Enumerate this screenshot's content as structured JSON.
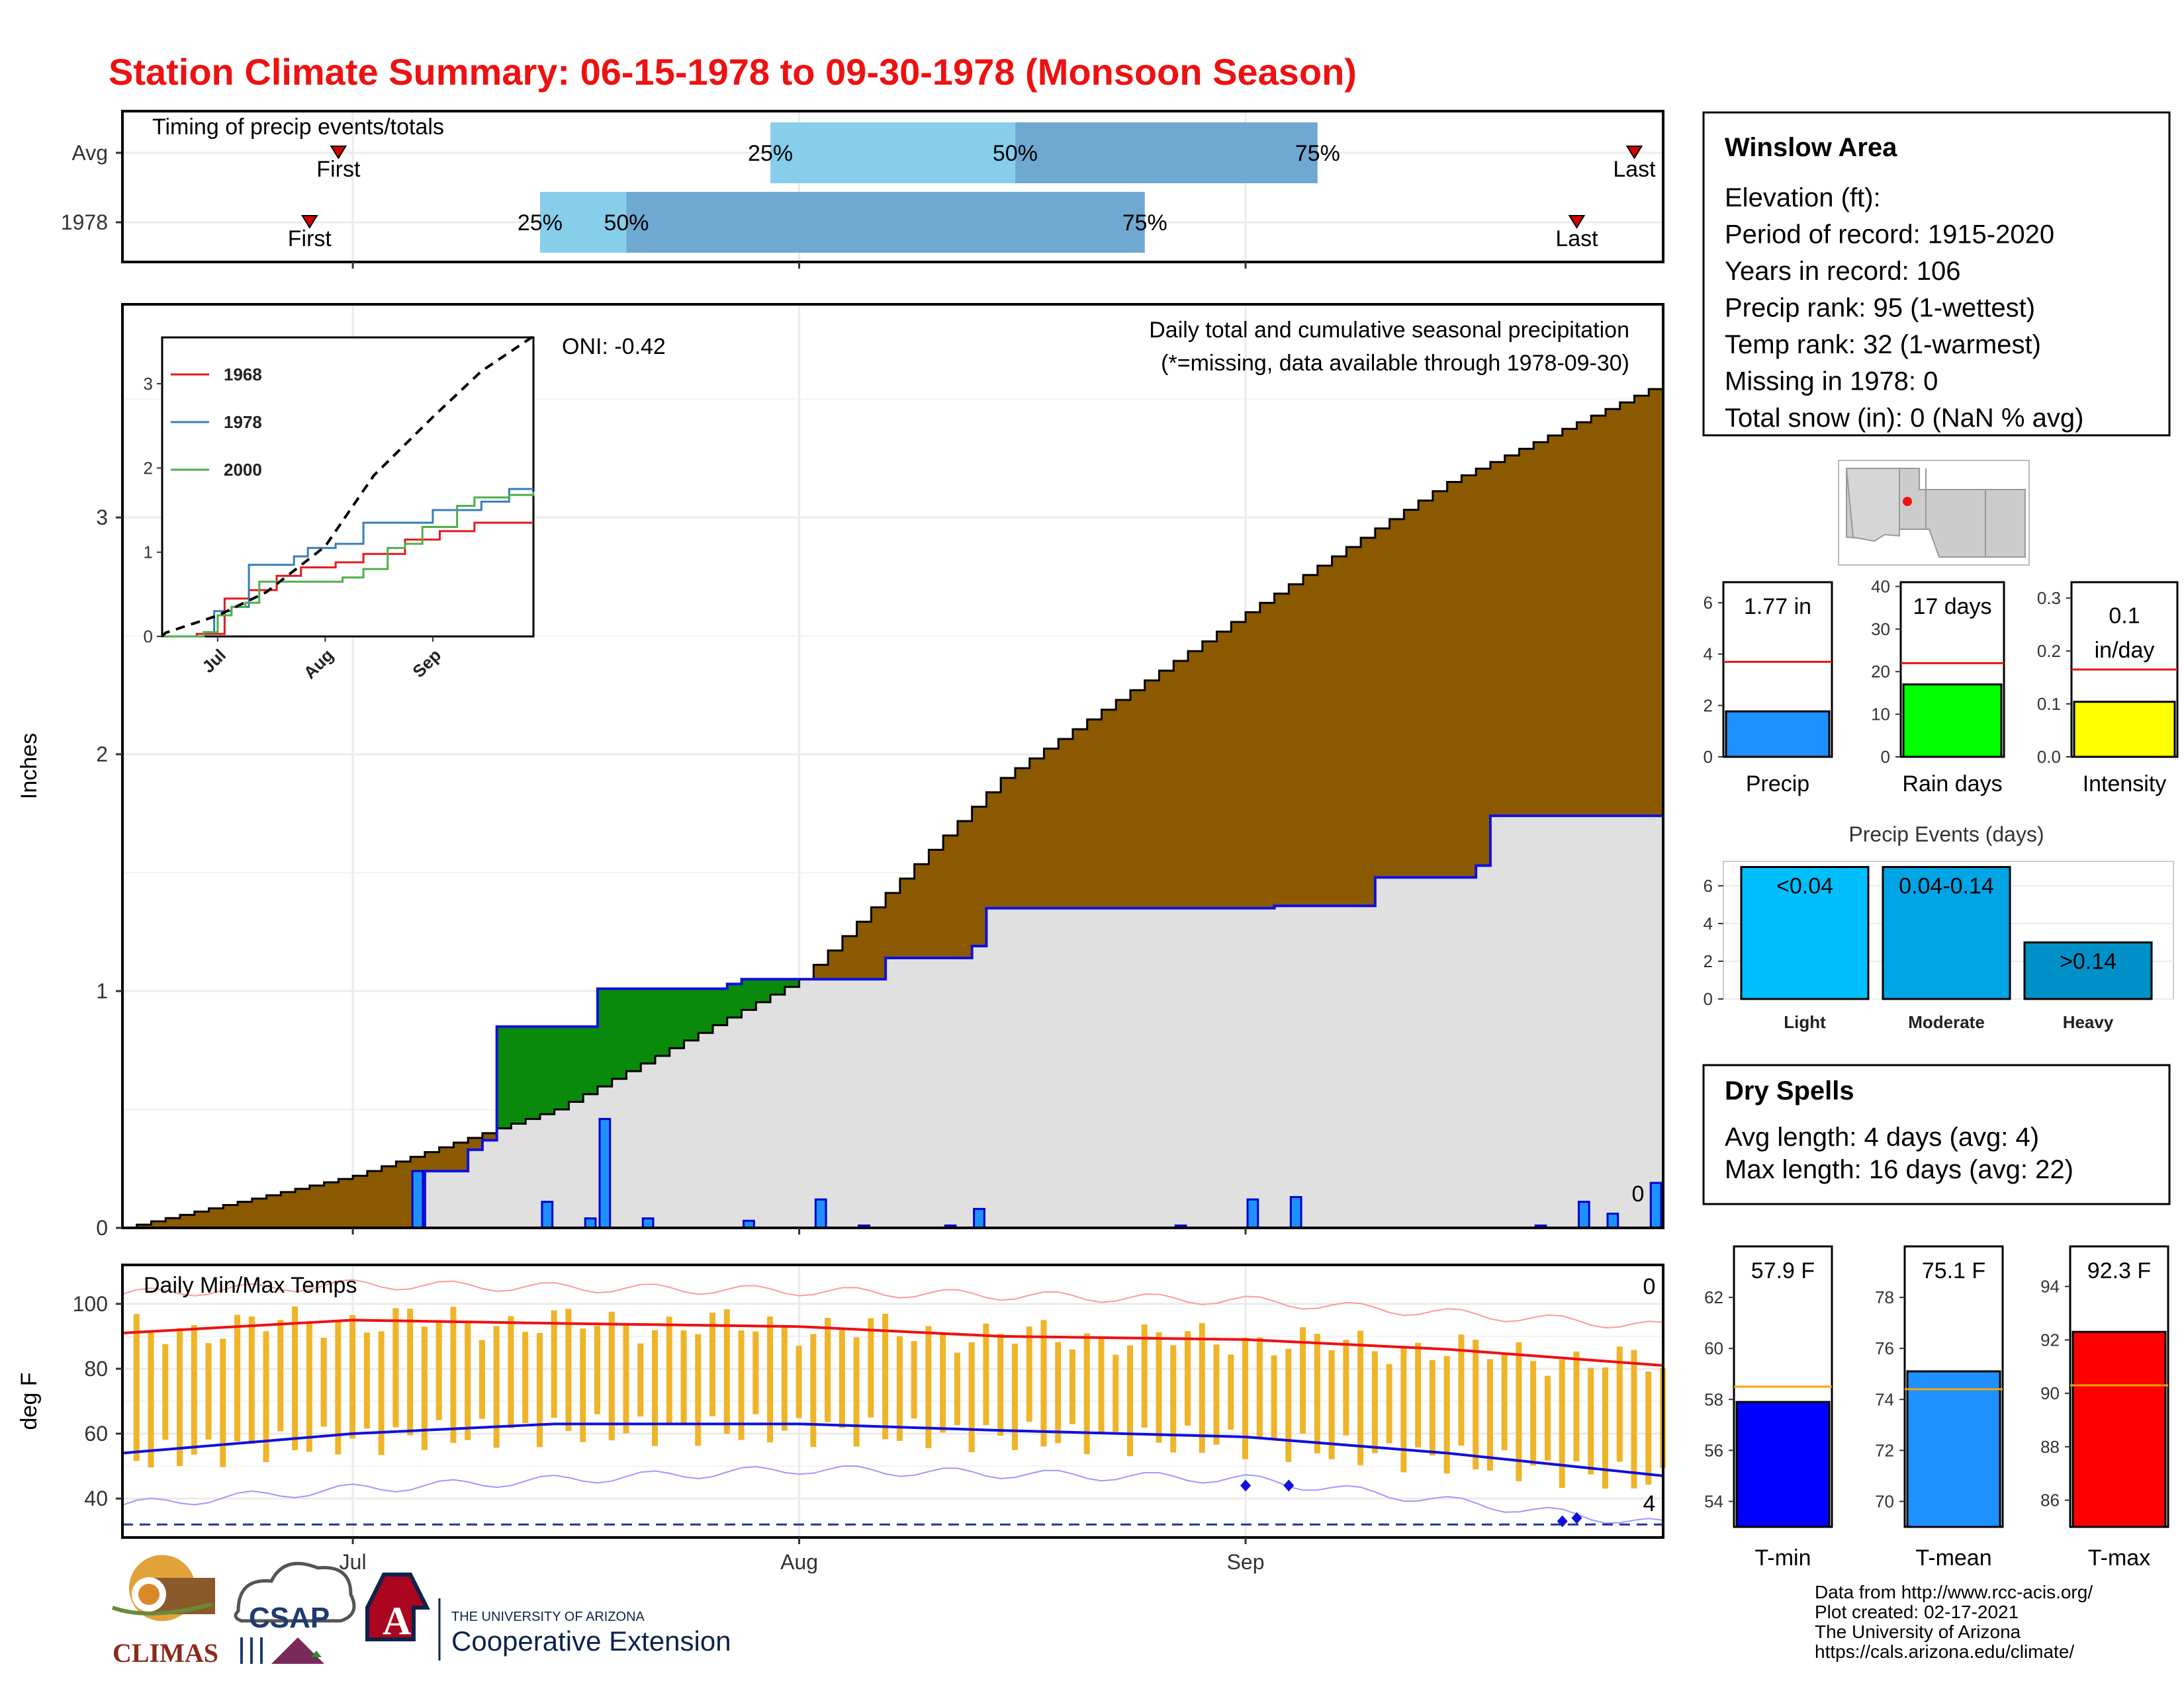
{
  "title": "Station Climate Summary: 06-15-1978 to 09-30-1978 (Monsoon Season)",
  "timing_panel": {
    "label": "Timing of precip events/totals",
    "rows": [
      {
        "name": "Avg",
        "first": "First",
        "last": "Last",
        "first_day": 15,
        "last_day": 105,
        "p25_day": 45,
        "p50_day": 62,
        "p75_day": 83,
        "p25": "25%",
        "p50": "50%",
        "p75": "75%"
      },
      {
        "name": "1978",
        "first": "First",
        "last": "Last",
        "first_day": 13,
        "last_day": 101,
        "p25_day": 29,
        "p50_day": 35,
        "p75_day": 71,
        "p25": "25%",
        "p50": "50%",
        "p75": "75%"
      }
    ]
  },
  "main_chart": {
    "ylabel": "Inches",
    "title_line1": "Daily total and cumulative seasonal precipitation",
    "title_line2": "(*=missing, data available through 1978-09-30)",
    "oni": "ONI: -0.42",
    "missing_count": "0",
    "colors": {
      "above": "#8b5a00",
      "below": "#0a8a0a",
      "observed": "#e0e0e0",
      "daily_bar": "#1e90ff"
    }
  },
  "inset": {
    "legend": [
      {
        "name": "1968",
        "color": "#e41a1c"
      },
      {
        "name": "1978",
        "color": "#377eb8"
      },
      {
        "name": "2000",
        "color": "#4daf4a"
      }
    ],
    "yticks": [
      "0",
      "1",
      "2",
      "3"
    ],
    "xticks": [
      "Jul",
      "Aug",
      "Sep"
    ]
  },
  "temp_chart": {
    "ylabel": "deg F",
    "label": "Daily Min/Max Temps",
    "count_top": "0",
    "count_bottom": "4",
    "yticks": [
      "40",
      "60",
      "80",
      "100"
    ]
  },
  "xaxis": [
    "Jul",
    "Aug",
    "Sep"
  ],
  "info_box": {
    "station": "Winslow Area",
    "lines": [
      "Elevation (ft):",
      "Period of record: 1915-2020",
      "Years in record: 106",
      "Precip rank: 95 (1-wettest)",
      "Temp rank: 32 (1-warmest)",
      "Missing in 1978: 0",
      "Total snow (in): 0 (NaN % avg)"
    ]
  },
  "mini_bars": [
    {
      "label": "Precip",
      "value_text": "1.77 in",
      "value": 1.77,
      "avg": 3.7,
      "ymax": 6.8,
      "ticks": [
        0,
        2,
        4,
        6
      ],
      "color": "#1e90ff"
    },
    {
      "label": "Rain days",
      "value_text": "17 days",
      "value": 17,
      "avg": 22,
      "ymax": 41,
      "ticks": [
        0,
        10,
        20,
        30,
        40
      ],
      "color": "#00ff00"
    },
    {
      "label": "Intensity",
      "value_text_1": "0.1",
      "value_text_2": "in/day",
      "value": 0.104,
      "avg": 0.165,
      "ymax": 0.33,
      "ticks": [
        "0.0",
        "0.1",
        "0.2",
        "0.3"
      ],
      "color": "#ffff00"
    }
  ],
  "precip_events": {
    "title": "Precip Events (days)",
    "yticks": [
      0,
      2,
      4,
      6
    ],
    "bars": [
      {
        "category": "Light",
        "label": "<0.04",
        "value": 7,
        "color": "#00bfff"
      },
      {
        "category": "Moderate",
        "label": "0.04-0.14",
        "value": 7,
        "color": "#00a5e6"
      },
      {
        "category": "Heavy",
        "label": ">0.14",
        "value": 3,
        "color": "#0090c8"
      }
    ]
  },
  "dry_spells": {
    "title": "Dry Spells",
    "line1": "Avg length: 4 days (avg: 4)",
    "line2": "Max length: 16 days (avg: 22)"
  },
  "temp_bars": [
    {
      "label": "T-min",
      "value_text": "57.9 F",
      "value": 57.9,
      "avg": 58.5,
      "ymin": 53,
      "ymax": 64,
      "ticks": [
        54,
        56,
        58,
        60,
        62
      ],
      "color": "#0000ff"
    },
    {
      "label": "T-mean",
      "value_text": "75.1 F",
      "value": 75.1,
      "avg": 74.4,
      "ymin": 69,
      "ymax": 80,
      "ticks": [
        70,
        72,
        74,
        76,
        78
      ],
      "color": "#1e90ff"
    },
    {
      "label": "T-max",
      "value_text": "92.3 F",
      "value": 92.3,
      "avg": 90.3,
      "ymin": 85,
      "ymax": 95.5,
      "ticks": [
        86,
        88,
        90,
        92,
        94
      ],
      "color": "#ff0000"
    }
  ],
  "footer": [
    "Data from http://www.rcc-acis.org/",
    "Plot created: 02-17-2021",
    "The University of Arizona",
    "https://cals.arizona.edu/climate/"
  ],
  "logos": {
    "climas": "CLIMAS",
    "csap": "CSAP",
    "ua_small": "THE UNIVERSITY OF ARIZONA",
    "ua_big": "Cooperative Extension",
    "ua_letter": "A"
  },
  "chart_data": [
    {
      "type": "area",
      "title": "Daily total and cumulative seasonal precipitation",
      "ylabel": "Inches",
      "xlabel": "",
      "x_range": [
        "1978-06-15",
        "1978-09-30"
      ],
      "ylim": [
        0,
        3.9
      ],
      "series": [
        {
          "name": "Avg",
          "x": [
            "06-15",
            "07-01",
            "07-15",
            "08-01",
            "08-15",
            "09-01",
            "09-15",
            "09-30"
          ],
          "values": [
            0,
            0.22,
            0.5,
            1.05,
            1.9,
            2.6,
            3.15,
            3.57
          ]
        },
        {
          "name": "1978",
          "x": [
            "06-15",
            "07-01",
            "07-06",
            "07-09",
            "07-10",
            "07-11",
            "07-18",
            "07-27",
            "07-28",
            "08-01",
            "08-03",
            "08-07",
            "08-13",
            "08-14",
            "09-01",
            "09-03",
            "09-10",
            "09-17",
            "09-18",
            "09-30"
          ],
          "values": [
            0,
            0,
            0.24,
            0.33,
            0.37,
            0.85,
            1.01,
            1.03,
            1.05,
            1.05,
            1.05,
            1.14,
            1.19,
            1.35,
            1.35,
            1.36,
            1.48,
            1.53,
            1.74,
            1.77
          ]
        }
      ],
      "daily_bars": [
        {
          "date": "07-06",
          "value": 0.24
        },
        {
          "date": "07-15",
          "value": 0.11
        },
        {
          "date": "07-18",
          "value": 0.04
        },
        {
          "date": "07-19",
          "value": 0.46
        },
        {
          "date": "07-22",
          "value": 0.04
        },
        {
          "date": "07-29",
          "value": 0.03
        },
        {
          "date": "08-03",
          "value": 0.12
        },
        {
          "date": "08-06",
          "value": 0.01
        },
        {
          "date": "08-12",
          "value": 0.01
        },
        {
          "date": "08-14",
          "value": 0.08
        },
        {
          "date": "08-28",
          "value": 0.01
        },
        {
          "date": "09-02",
          "value": 0.12
        },
        {
          "date": "09-05",
          "value": 0.13
        },
        {
          "date": "09-22",
          "value": 0.01
        },
        {
          "date": "09-25",
          "value": 0.11
        },
        {
          "date": "09-27",
          "value": 0.06
        },
        {
          "date": "09-30",
          "value": 0.19
        }
      ]
    },
    {
      "type": "line",
      "title": "Daily Min/Max Temps",
      "ylabel": "deg F",
      "x_range": [
        "1978-06-15",
        "1978-09-30"
      ],
      "ylim": [
        28,
        112
      ],
      "series": [
        {
          "name": "Avg max",
          "x": [
            "06-15",
            "07-01",
            "07-15",
            "08-01",
            "08-15",
            "09-01",
            "09-15",
            "09-30"
          ],
          "values": [
            91,
            95,
            94,
            93,
            90,
            89,
            86,
            81
          ]
        },
        {
          "name": "Avg min",
          "x": [
            "06-15",
            "07-01",
            "07-15",
            "08-01",
            "08-15",
            "09-01",
            "09-15",
            "09-30"
          ],
          "values": [
            54,
            60,
            63,
            63,
            61,
            59,
            54,
            47
          ]
        },
        {
          "name": "Record high",
          "x": [
            "06-15",
            "07-01",
            "08-01",
            "09-01",
            "09-30"
          ],
          "values": [
            103,
            106,
            104,
            101,
            93
          ]
        },
        {
          "name": "Record low",
          "x": [
            "06-15",
            "07-01",
            "08-01",
            "09-01",
            "09-30"
          ],
          "values": [
            38,
            43,
            49,
            46,
            32
          ]
        }
      ]
    },
    {
      "type": "bar",
      "title": "Precip Events (days)",
      "categories": [
        "Light",
        "Moderate",
        "Heavy"
      ],
      "values": [
        7,
        7,
        3
      ]
    }
  ]
}
